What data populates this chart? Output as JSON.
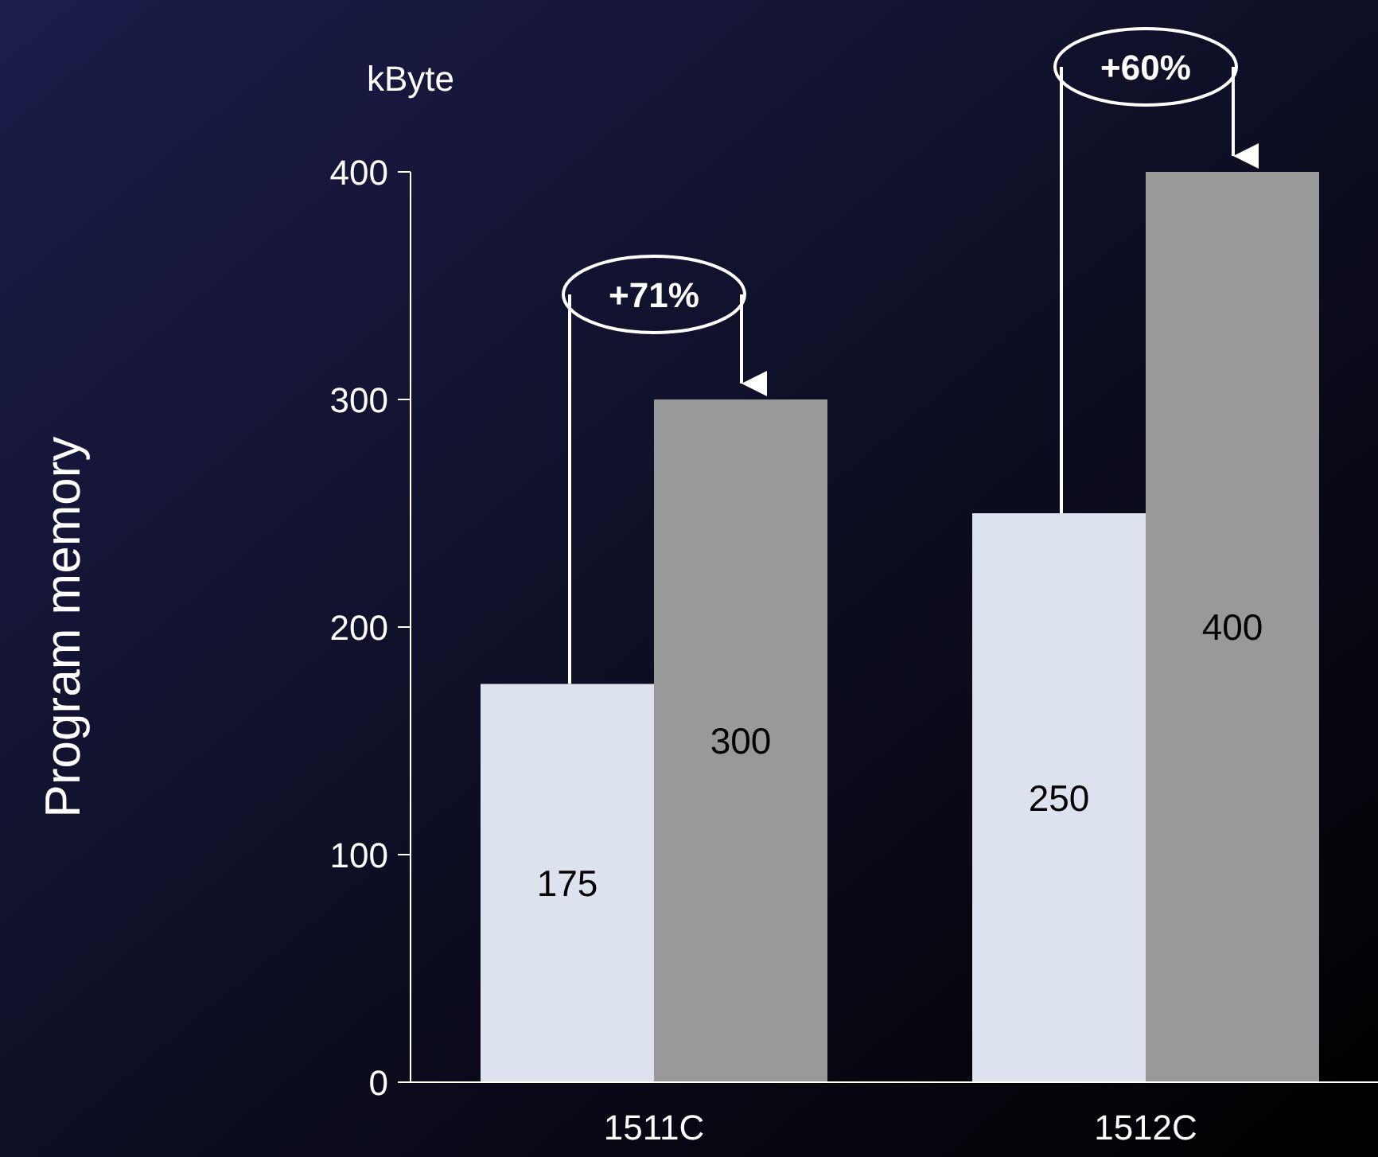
{
  "chart_data": {
    "type": "bar",
    "ylabel": "Program memory",
    "categories": [
      "1511C",
      "1512C"
    ],
    "series": [
      {
        "color": "#dde3ee",
        "values": [
          175,
          250
        ]
      },
      {
        "color": "#999999",
        "values": [
          300,
          400
        ]
      }
    ],
    "ylim": [
      0,
      400
    ],
    "yticks": [
      0,
      100,
      200,
      300,
      400
    ],
    "data_labels": true,
    "annotations": [
      "kByte",
      "+71%",
      "+60%"
    ]
  }
}
